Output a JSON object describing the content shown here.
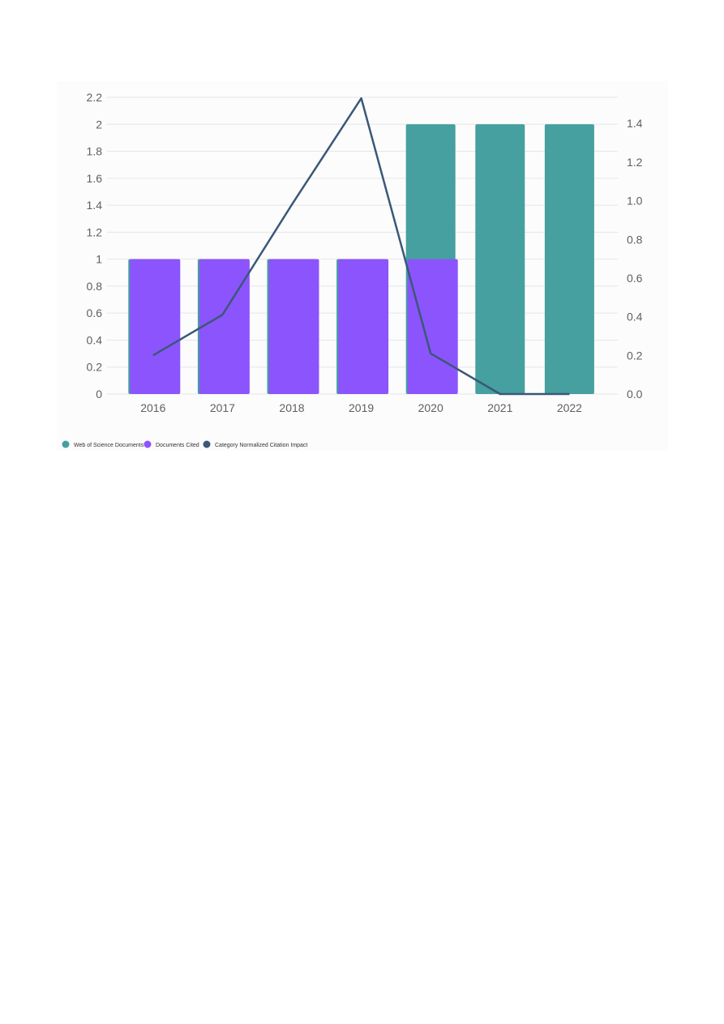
{
  "chart_data": {
    "type": "bar",
    "categories": [
      "2016",
      "2017",
      "2018",
      "2019",
      "2020",
      "2021",
      "2022"
    ],
    "series": [
      {
        "name": "Web of Science Documents",
        "kind": "bar",
        "axis": "left",
        "color": "#45a09f",
        "values": [
          1,
          1,
          1,
          1,
          2,
          2,
          2
        ]
      },
      {
        "name": "Documents Cited",
        "kind": "bar",
        "axis": "left",
        "color": "#8c54fc",
        "values": [
          1,
          1,
          1,
          1,
          1,
          0,
          0
        ]
      },
      {
        "name": "Category Normalized Citation Impact",
        "kind": "line",
        "axis": "right",
        "color": "#3a5878",
        "values": [
          0.2,
          0.41,
          0.98,
          1.53,
          0.21,
          0.0,
          0.0
        ]
      }
    ],
    "y_left": {
      "ylim": [
        0,
        2.2
      ],
      "ticks": [
        "0",
        "0.2",
        "0.4",
        "0.6",
        "0.8",
        "1",
        "1.2",
        "1.4",
        "1.6",
        "1.8",
        "2",
        "2.2"
      ]
    },
    "y_right": {
      "ylim": [
        0,
        1.535
      ],
      "ticks": [
        "0.0",
        "0.2",
        "0.4",
        "0.6",
        "0.8",
        "1.0",
        "1.2",
        "1.4"
      ]
    },
    "title": "",
    "xlabel": "",
    "ylabel": "",
    "grid": true,
    "legend_position": "bottom-left"
  }
}
